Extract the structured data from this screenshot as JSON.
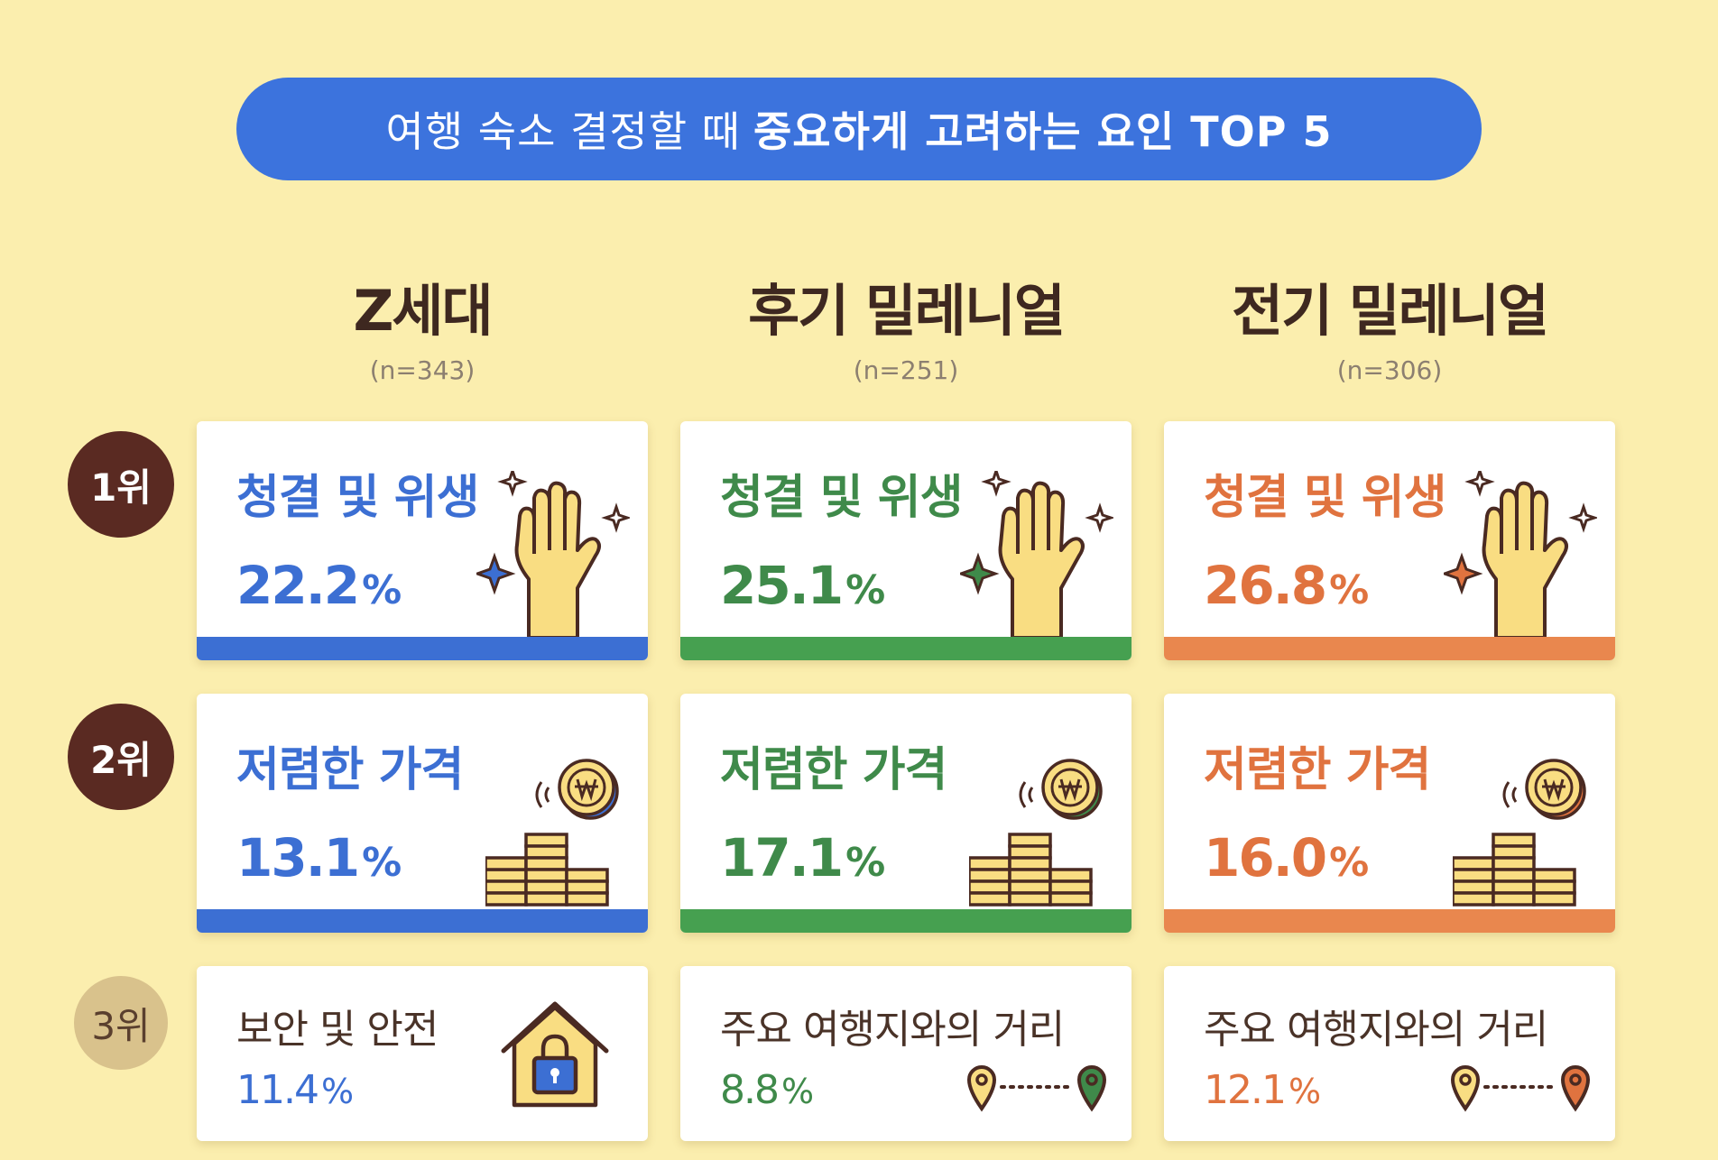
{
  "title": {
    "normal": "여행 숙소 결정할 때",
    "bold": "중요하게 고려하는 요인 TOP 5"
  },
  "colors": {
    "background": "#fbeeae",
    "banner": "#3c73dd",
    "gen_z": "#3c6fd3",
    "late_millennial": "#3f8a4a",
    "early_millennial": "#e0733f",
    "rank_top": "#5a2a22",
    "rank_other": "#d9c28c"
  },
  "groups": [
    {
      "name": "Z세대",
      "n": "(n=343)"
    },
    {
      "name": "후기 밀레니얼",
      "n": "(n=251)"
    },
    {
      "name": "전기 밀레니얼",
      "n": "(n=306)"
    }
  ],
  "ranks": [
    {
      "label": "1위",
      "icon": "raised-hand-sparkle-icon"
    },
    {
      "label": "2위",
      "icon": "coins-stack-icon"
    },
    {
      "label": "3위",
      "icon": "house-lock-icon"
    }
  ],
  "chart_data": {
    "type": "table",
    "title": "여행 숙소 결정할 때 중요하게 고려하는 요인 TOP 5",
    "columns": [
      "Z세대",
      "후기 밀레니얼",
      "전기 밀레니얼"
    ],
    "rows": [
      {
        "rank": "1위",
        "cells": [
          {
            "factor": "청결 및 위생",
            "value": 22.2,
            "value_text": "22.2"
          },
          {
            "factor": "청결 및 위생",
            "value": 25.1,
            "value_text": "25.1"
          },
          {
            "factor": "청결 및 위생",
            "value": 26.8,
            "value_text": "26.8"
          }
        ]
      },
      {
        "rank": "2위",
        "cells": [
          {
            "factor": "저렴한 가격",
            "value": 13.1,
            "value_text": "13.1"
          },
          {
            "factor": "저렴한 가격",
            "value": 17.1,
            "value_text": "17.1"
          },
          {
            "factor": "저렴한 가격",
            "value": 16.0,
            "value_text": "16.0"
          }
        ]
      },
      {
        "rank": "3위",
        "cells": [
          {
            "factor": "보안 및 안전",
            "value": 11.4,
            "value_text": "11.4"
          },
          {
            "factor": "주요 여행지와의 거리",
            "value": 8.8,
            "value_text": "8.8"
          },
          {
            "factor": "주요 여행지와의 거리",
            "value": 12.1,
            "value_text": "12.1"
          }
        ]
      }
    ],
    "unit": "%"
  }
}
